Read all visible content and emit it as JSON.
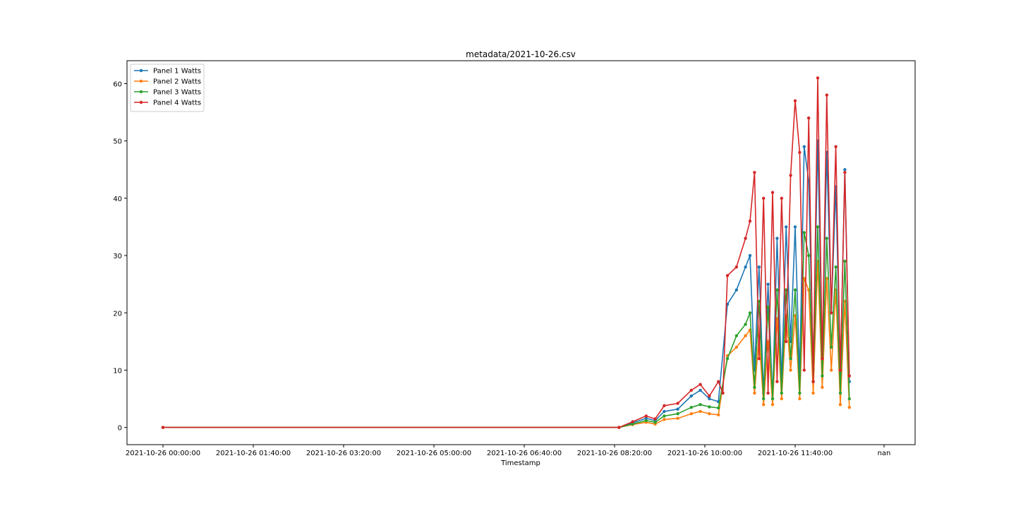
{
  "chart_data": {
    "type": "line",
    "title": "metadata/2021-10-26.csv",
    "xlabel": "Timestamp",
    "ylabel": "",
    "x_ticks": [
      "2021-10-26 00:00:00",
      "2021-10-26 01:40:00",
      "2021-10-26 03:20:00",
      "2021-10-26 05:00:00",
      "2021-10-26 06:40:00",
      "2021-10-26 08:20:00",
      "2021-10-26 10:00:00",
      "2021-10-26 11:40:00",
      "nan"
    ],
    "y_ticks": [
      0,
      10,
      20,
      30,
      40,
      50,
      60
    ],
    "ylim": [
      -3,
      64
    ],
    "grid": false,
    "legend_position": "top-left",
    "series": [
      {
        "name": "Panel 1 Watts",
        "color": "#1f77b4",
        "points": [
          [
            "2021-10-26 00:00:00",
            0
          ],
          [
            "2021-10-26 08:25:00",
            0
          ],
          [
            "2021-10-26 08:40:00",
            0.8
          ],
          [
            "2021-10-26 08:55:00",
            1.6
          ],
          [
            "2021-10-26 09:05:00",
            1.2
          ],
          [
            "2021-10-26 09:15:00",
            2.8
          ],
          [
            "2021-10-26 09:30:00",
            3.2
          ],
          [
            "2021-10-26 09:45:00",
            5.5
          ],
          [
            "2021-10-26 09:55:00",
            6.5
          ],
          [
            "2021-10-26 10:05:00",
            5
          ],
          [
            "2021-10-26 10:15:00",
            4.5
          ],
          [
            "2021-10-26 10:25:00",
            21.5
          ],
          [
            "2021-10-26 10:35:00",
            24
          ],
          [
            "2021-10-26 10:45:00",
            28
          ],
          [
            "2021-10-26 10:50:00",
            30
          ],
          [
            "2021-10-26 10:55:00",
            10
          ],
          [
            "2021-10-26 11:00:00",
            28
          ],
          [
            "2021-10-26 11:05:00",
            6
          ],
          [
            "2021-10-26 11:10:00",
            25
          ],
          [
            "2021-10-26 11:15:00",
            5
          ],
          [
            "2021-10-26 11:20:00",
            33
          ],
          [
            "2021-10-26 11:25:00",
            8
          ],
          [
            "2021-10-26 11:30:00",
            35
          ],
          [
            "2021-10-26 11:35:00",
            15
          ],
          [
            "2021-10-26 11:40:00",
            35
          ],
          [
            "2021-10-26 11:45:00",
            9
          ],
          [
            "2021-10-26 11:50:00",
            49
          ],
          [
            "2021-10-26 11:55:00",
            43
          ],
          [
            "2021-10-26 12:00:00",
            10
          ],
          [
            "2021-10-26 12:05:00",
            50
          ],
          [
            "2021-10-26 12:10:00",
            12
          ],
          [
            "2021-10-26 12:15:00",
            48
          ],
          [
            "2021-10-26 12:20:00",
            20
          ],
          [
            "2021-10-26 12:25:00",
            42
          ],
          [
            "2021-10-26 12:30:00",
            9
          ],
          [
            "2021-10-26 12:35:00",
            45
          ],
          [
            "2021-10-26 12:40:00",
            8
          ]
        ]
      },
      {
        "name": "Panel 2 Watts",
        "color": "#ff7f0e",
        "points": [
          [
            "2021-10-26 00:00:00",
            0
          ],
          [
            "2021-10-26 08:25:00",
            0
          ],
          [
            "2021-10-26 08:40:00",
            0.5
          ],
          [
            "2021-10-26 08:55:00",
            0.9
          ],
          [
            "2021-10-26 09:05:00",
            0.6
          ],
          [
            "2021-10-26 09:15:00",
            1.4
          ],
          [
            "2021-10-26 09:30:00",
            1.6
          ],
          [
            "2021-10-26 09:45:00",
            2.4
          ],
          [
            "2021-10-26 09:55:00",
            2.8
          ],
          [
            "2021-10-26 10:05:00",
            2.4
          ],
          [
            "2021-10-26 10:15:00",
            2.2
          ],
          [
            "2021-10-26 10:25:00",
            12.5
          ],
          [
            "2021-10-26 10:35:00",
            14
          ],
          [
            "2021-10-26 10:45:00",
            16
          ],
          [
            "2021-10-26 10:50:00",
            17
          ],
          [
            "2021-10-26 10:55:00",
            6
          ],
          [
            "2021-10-26 11:00:00",
            16
          ],
          [
            "2021-10-26 11:05:00",
            4
          ],
          [
            "2021-10-26 11:10:00",
            15
          ],
          [
            "2021-10-26 11:15:00",
            4
          ],
          [
            "2021-10-26 11:20:00",
            19
          ],
          [
            "2021-10-26 11:25:00",
            5
          ],
          [
            "2021-10-26 11:30:00",
            19.5
          ],
          [
            "2021-10-26 11:35:00",
            10
          ],
          [
            "2021-10-26 11:40:00",
            19.5
          ],
          [
            "2021-10-26 11:45:00",
            5
          ],
          [
            "2021-10-26 11:50:00",
            26
          ],
          [
            "2021-10-26 11:55:00",
            24
          ],
          [
            "2021-10-26 12:00:00",
            6
          ],
          [
            "2021-10-26 12:05:00",
            29
          ],
          [
            "2021-10-26 12:10:00",
            7
          ],
          [
            "2021-10-26 12:15:00",
            26
          ],
          [
            "2021-10-26 12:20:00",
            10
          ],
          [
            "2021-10-26 12:25:00",
            24
          ],
          [
            "2021-10-26 12:30:00",
            4
          ],
          [
            "2021-10-26 12:35:00",
            22
          ],
          [
            "2021-10-26 12:40:00",
            3.5
          ]
        ]
      },
      {
        "name": "Panel 3 Watts",
        "color": "#2ca02c",
        "points": [
          [
            "2021-10-26 00:00:00",
            0
          ],
          [
            "2021-10-26 08:25:00",
            0
          ],
          [
            "2021-10-26 08:40:00",
            0.6
          ],
          [
            "2021-10-26 08:55:00",
            1.2
          ],
          [
            "2021-10-26 09:05:00",
            0.9
          ],
          [
            "2021-10-26 09:15:00",
            2
          ],
          [
            "2021-10-26 09:30:00",
            2.4
          ],
          [
            "2021-10-26 09:45:00",
            3.5
          ],
          [
            "2021-10-26 09:55:00",
            4
          ],
          [
            "2021-10-26 10:05:00",
            3.6
          ],
          [
            "2021-10-26 10:15:00",
            3.4
          ],
          [
            "2021-10-26 10:25:00",
            12
          ],
          [
            "2021-10-26 10:35:00",
            16
          ],
          [
            "2021-10-26 10:45:00",
            18
          ],
          [
            "2021-10-26 10:50:00",
            20
          ],
          [
            "2021-10-26 10:55:00",
            7
          ],
          [
            "2021-10-26 11:00:00",
            22
          ],
          [
            "2021-10-26 11:05:00",
            5
          ],
          [
            "2021-10-26 11:10:00",
            21
          ],
          [
            "2021-10-26 11:15:00",
            5
          ],
          [
            "2021-10-26 11:20:00",
            24
          ],
          [
            "2021-10-26 11:25:00",
            6
          ],
          [
            "2021-10-26 11:30:00",
            24
          ],
          [
            "2021-10-26 11:35:00",
            12
          ],
          [
            "2021-10-26 11:40:00",
            24
          ],
          [
            "2021-10-26 11:45:00",
            6
          ],
          [
            "2021-10-26 11:50:00",
            34
          ],
          [
            "2021-10-26 11:55:00",
            30
          ],
          [
            "2021-10-26 12:00:00",
            8
          ],
          [
            "2021-10-26 12:05:00",
            35
          ],
          [
            "2021-10-26 12:10:00",
            9
          ],
          [
            "2021-10-26 12:15:00",
            33
          ],
          [
            "2021-10-26 12:20:00",
            14
          ],
          [
            "2021-10-26 12:25:00",
            28
          ],
          [
            "2021-10-26 12:30:00",
            6
          ],
          [
            "2021-10-26 12:35:00",
            29
          ],
          [
            "2021-10-26 12:40:00",
            5
          ]
        ]
      },
      {
        "name": "Panel 4 Watts",
        "color": "#d62728",
        "points": [
          [
            "2021-10-26 00:00:00",
            0
          ],
          [
            "2021-10-26 08:25:00",
            0
          ],
          [
            "2021-10-26 08:40:00",
            1
          ],
          [
            "2021-10-26 08:55:00",
            2
          ],
          [
            "2021-10-26 09:05:00",
            1.5
          ],
          [
            "2021-10-26 09:15:00",
            3.8
          ],
          [
            "2021-10-26 09:30:00",
            4.2
          ],
          [
            "2021-10-26 09:45:00",
            6.5
          ],
          [
            "2021-10-26 09:55:00",
            7.5
          ],
          [
            "2021-10-26 10:05:00",
            5.5
          ],
          [
            "2021-10-26 10:15:00",
            8
          ],
          [
            "2021-10-26 10:20:00",
            6
          ],
          [
            "2021-10-26 10:25:00",
            26.5
          ],
          [
            "2021-10-26 10:35:00",
            28
          ],
          [
            "2021-10-26 10:45:00",
            33
          ],
          [
            "2021-10-26 10:50:00",
            36
          ],
          [
            "2021-10-26 10:55:00",
            44.5
          ],
          [
            "2021-10-26 11:00:00",
            12
          ],
          [
            "2021-10-26 11:05:00",
            40
          ],
          [
            "2021-10-26 11:10:00",
            6
          ],
          [
            "2021-10-26 11:15:00",
            41
          ],
          [
            "2021-10-26 11:20:00",
            8
          ],
          [
            "2021-10-26 11:25:00",
            40
          ],
          [
            "2021-10-26 11:30:00",
            15
          ],
          [
            "2021-10-26 11:35:00",
            44
          ],
          [
            "2021-10-26 11:40:00",
            57
          ],
          [
            "2021-10-26 11:45:00",
            48
          ],
          [
            "2021-10-26 11:50:00",
            10
          ],
          [
            "2021-10-26 11:55:00",
            54
          ],
          [
            "2021-10-26 12:00:00",
            8
          ],
          [
            "2021-10-26 12:05:00",
            61
          ],
          [
            "2021-10-26 12:10:00",
            12
          ],
          [
            "2021-10-26 12:15:00",
            58
          ],
          [
            "2021-10-26 12:20:00",
            20
          ],
          [
            "2021-10-26 12:25:00",
            49
          ],
          [
            "2021-10-26 12:30:00",
            10
          ],
          [
            "2021-10-26 12:35:00",
            44.5
          ],
          [
            "2021-10-26 12:40:00",
            9
          ]
        ]
      }
    ]
  }
}
